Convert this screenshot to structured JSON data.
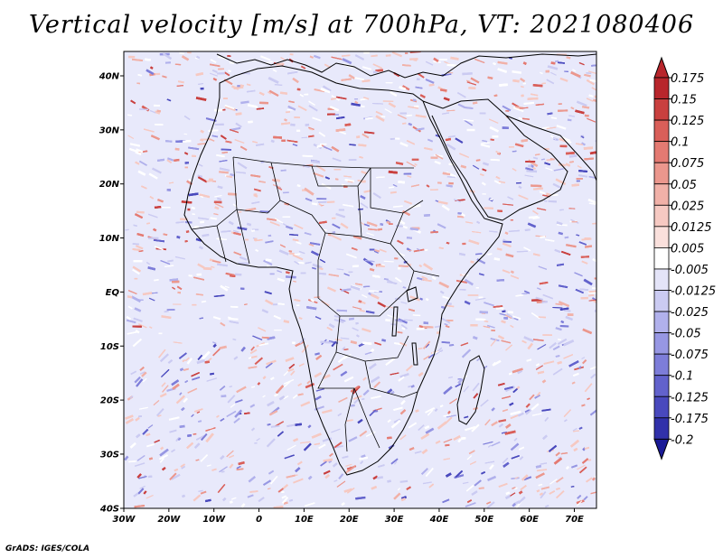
{
  "title": "Vertical velocity [m/s] at 700hPa, VT: 2021080406",
  "footer": "GrADS: IGES/COLA",
  "lat_ticks": [
    "40N",
    "30N",
    "20N",
    "10N",
    "EQ",
    "10S",
    "20S",
    "30S",
    "40S"
  ],
  "lon_ticks": [
    "30W",
    "20W",
    "10W",
    "0",
    "10E",
    "20E",
    "30E",
    "40E",
    "50E",
    "60E",
    "70E"
  ],
  "colorbar": {
    "labels": [
      "0.175",
      "0.15",
      "0.125",
      "0.1",
      "0.075",
      "0.05",
      "0.025",
      "0.0125",
      "0.005",
      "-0.005",
      "-0.0125",
      "-0.025",
      "-0.05",
      "-0.075",
      "-0.1",
      "-0.125",
      "-0.175",
      "-0.2"
    ],
    "colors": [
      "#b8262c",
      "#c9403f",
      "#d95f59",
      "#e47a72",
      "#eb978d",
      "#f1b1a8",
      "#f6c9c2",
      "#fae0dc",
      "#ffffff",
      "#e4e4f8",
      "#cbcbf2",
      "#b1b1ec",
      "#9797e3",
      "#7d7dd9",
      "#6262cc",
      "#4949bd",
      "#3131aa",
      "#1a1a96"
    ]
  },
  "field": {
    "ocean_tint": "#e7e9fb",
    "land_tint": "#ece6f2"
  }
}
